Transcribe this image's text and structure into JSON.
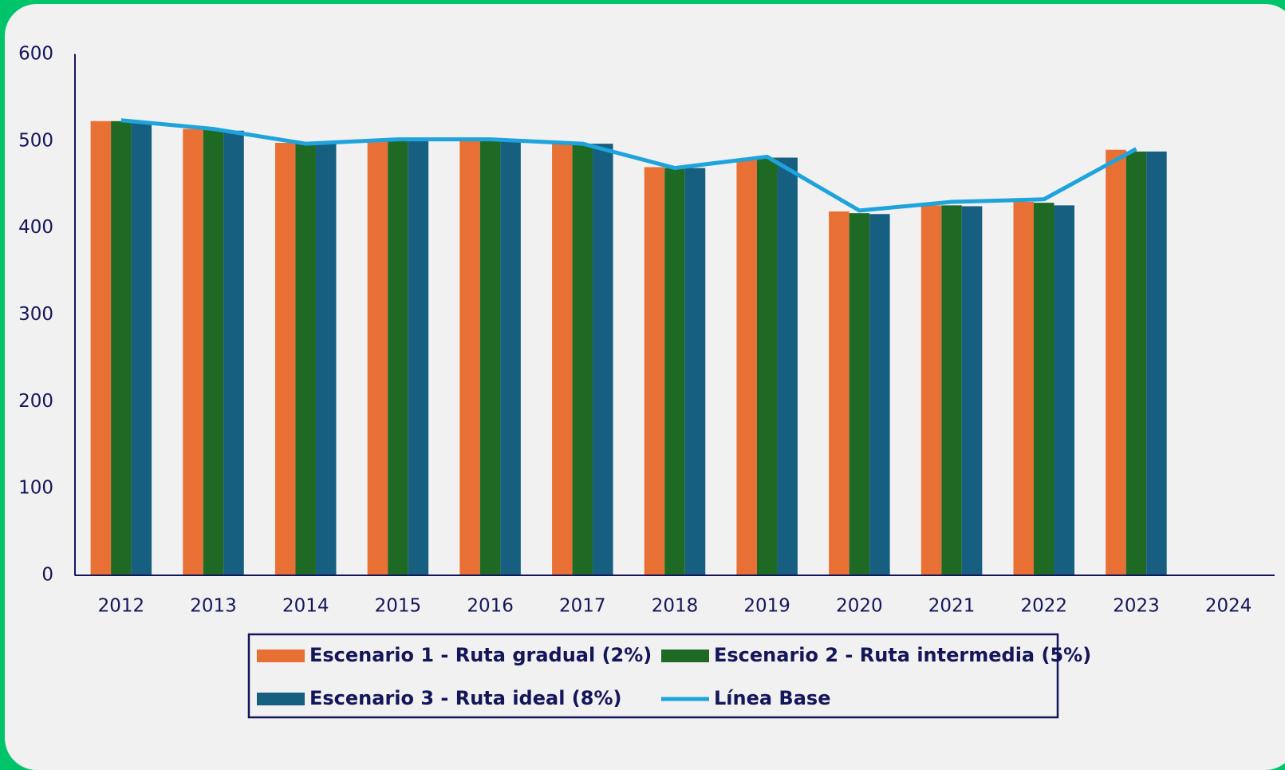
{
  "chart_data": {
    "type": "bar",
    "categories": [
      "2012",
      "2013",
      "2014",
      "2015",
      "2016",
      "2017",
      "2018",
      "2019",
      "2020",
      "2021",
      "2022",
      "2023",
      "2024"
    ],
    "series": [
      {
        "name": "Escenario 1 - Ruta gradual (2%)",
        "color": "#e87035",
        "type": "bar",
        "values": [
          523,
          514,
          498,
          502,
          502,
          498,
          470,
          480,
          419,
          426,
          430,
          490,
          null
        ]
      },
      {
        "name": "Escenario 2 - Ruta intermedia (5%)",
        "color": "#1e6a25",
        "type": "bar",
        "values": [
          523,
          513,
          497,
          501,
          501,
          497,
          469,
          481,
          417,
          426,
          429,
          488,
          null
        ]
      },
      {
        "name": "Escenario 3 - Ruta ideal (8%)",
        "color": "#175f80",
        "type": "bar",
        "values": [
          522,
          512,
          497,
          501,
          501,
          497,
          469,
          481,
          416,
          425,
          426,
          488,
          null
        ]
      },
      {
        "name": "Línea Base",
        "color": "#1ea3dc",
        "type": "line",
        "values": [
          524,
          514,
          497,
          502,
          502,
          497,
          469,
          482,
          420,
          430,
          433,
          491,
          null
        ]
      }
    ],
    "ylim": [
      0,
      600
    ],
    "yticks": [
      0,
      100,
      200,
      300,
      400,
      500,
      600
    ]
  }
}
